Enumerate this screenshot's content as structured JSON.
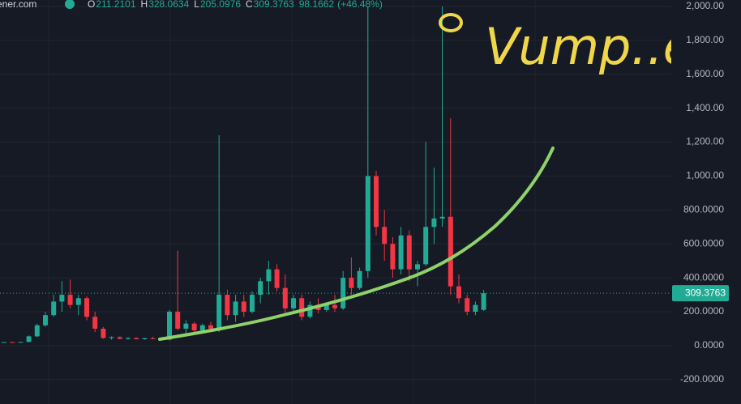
{
  "chart_data": {
    "type": "candlestick",
    "header": {
      "symbol": "ener.com",
      "labels": [
        "O",
        "H",
        "L",
        "C"
      ],
      "change": "98.1662",
      "change_pct": "(+46.48%)"
    },
    "annotation": "Vump..ed",
    "open": [
      20,
      21,
      20,
      22,
      55,
      120,
      180,
      260,
      300,
      240,
      280,
      170,
      100,
      45,
      50,
      40,
      45,
      38,
      44,
      40,
      36,
      200,
      100,
      130,
      90,
      120,
      100,
      300,
      180,
      260,
      200,
      300,
      380,
      450,
      340,
      220,
      280,
      170,
      240,
      210,
      240,
      220,
      400,
      340,
      440,
      1000,
      700,
      600,
      450,
      650,
      450,
      480,
      700,
      750,
      760,
      350,
      280,
      200,
      211.2101
    ],
    "high": [
      22,
      23,
      22,
      60,
      130,
      200,
      300,
      380,
      390,
      300,
      290,
      200,
      110,
      55,
      55,
      50,
      48,
      46,
      52,
      45,
      210,
      560,
      150,
      140,
      130,
      140,
      1240,
      330,
      300,
      300,
      320,
      400,
      500,
      480,
      420,
      300,
      300,
      260,
      280,
      250,
      300,
      440,
      520,
      460,
      2000,
      1030,
      800,
      640,
      700,
      680,
      500,
      1200,
      1050,
      2000,
      1340,
      420,
      300,
      260,
      328.0634
    ],
    "low": [
      18,
      19,
      19,
      20,
      50,
      110,
      170,
      200,
      220,
      180,
      150,
      80,
      40,
      35,
      38,
      35,
      36,
      34,
      38,
      33,
      30,
      90,
      70,
      80,
      80,
      90,
      80,
      150,
      140,
      170,
      190,
      250,
      300,
      320,
      180,
      200,
      150,
      160,
      190,
      200,
      200,
      210,
      300,
      330,
      400,
      650,
      500,
      400,
      420,
      380,
      350,
      470,
      600,
      700,
      300,
      250,
      180,
      180,
      205.0976
    ],
    "close": [
      21,
      20,
      22,
      55,
      120,
      180,
      260,
      300,
      240,
      280,
      170,
      100,
      45,
      50,
      40,
      45,
      38,
      44,
      40,
      36,
      200,
      100,
      130,
      90,
      120,
      100,
      300,
      180,
      260,
      200,
      300,
      380,
      450,
      340,
      220,
      280,
      170,
      240,
      210,
      240,
      220,
      400,
      340,
      440,
      1000,
      700,
      600,
      450,
      650,
      450,
      480,
      700,
      750,
      760,
      350,
      280,
      200,
      240,
      309.3763
    ],
    "up_color": "#22ab94",
    "down_color": "#f23645",
    "ylim": [
      -344,
      2038
    ],
    "yticks": [
      {
        "value": 2000,
        "label": "2,000.00"
      },
      {
        "value": 1800,
        "label": "1,800.00"
      },
      {
        "value": 1600,
        "label": "1,600.00"
      },
      {
        "value": 1400,
        "label": "1,400.00"
      },
      {
        "value": 1200,
        "label": "1,200.00"
      },
      {
        "value": 1000,
        "label": "1,000.00"
      },
      {
        "value": 800,
        "label": "800.0000"
      },
      {
        "value": 600,
        "label": "600.0000"
      },
      {
        "value": 400,
        "label": "400.0000"
      },
      {
        "value": 200,
        "label": "200.0000"
      },
      {
        "value": 0,
        "label": "0.0000"
      },
      {
        "value": -200,
        "label": "-200.0000"
      }
    ],
    "grid": true
  }
}
